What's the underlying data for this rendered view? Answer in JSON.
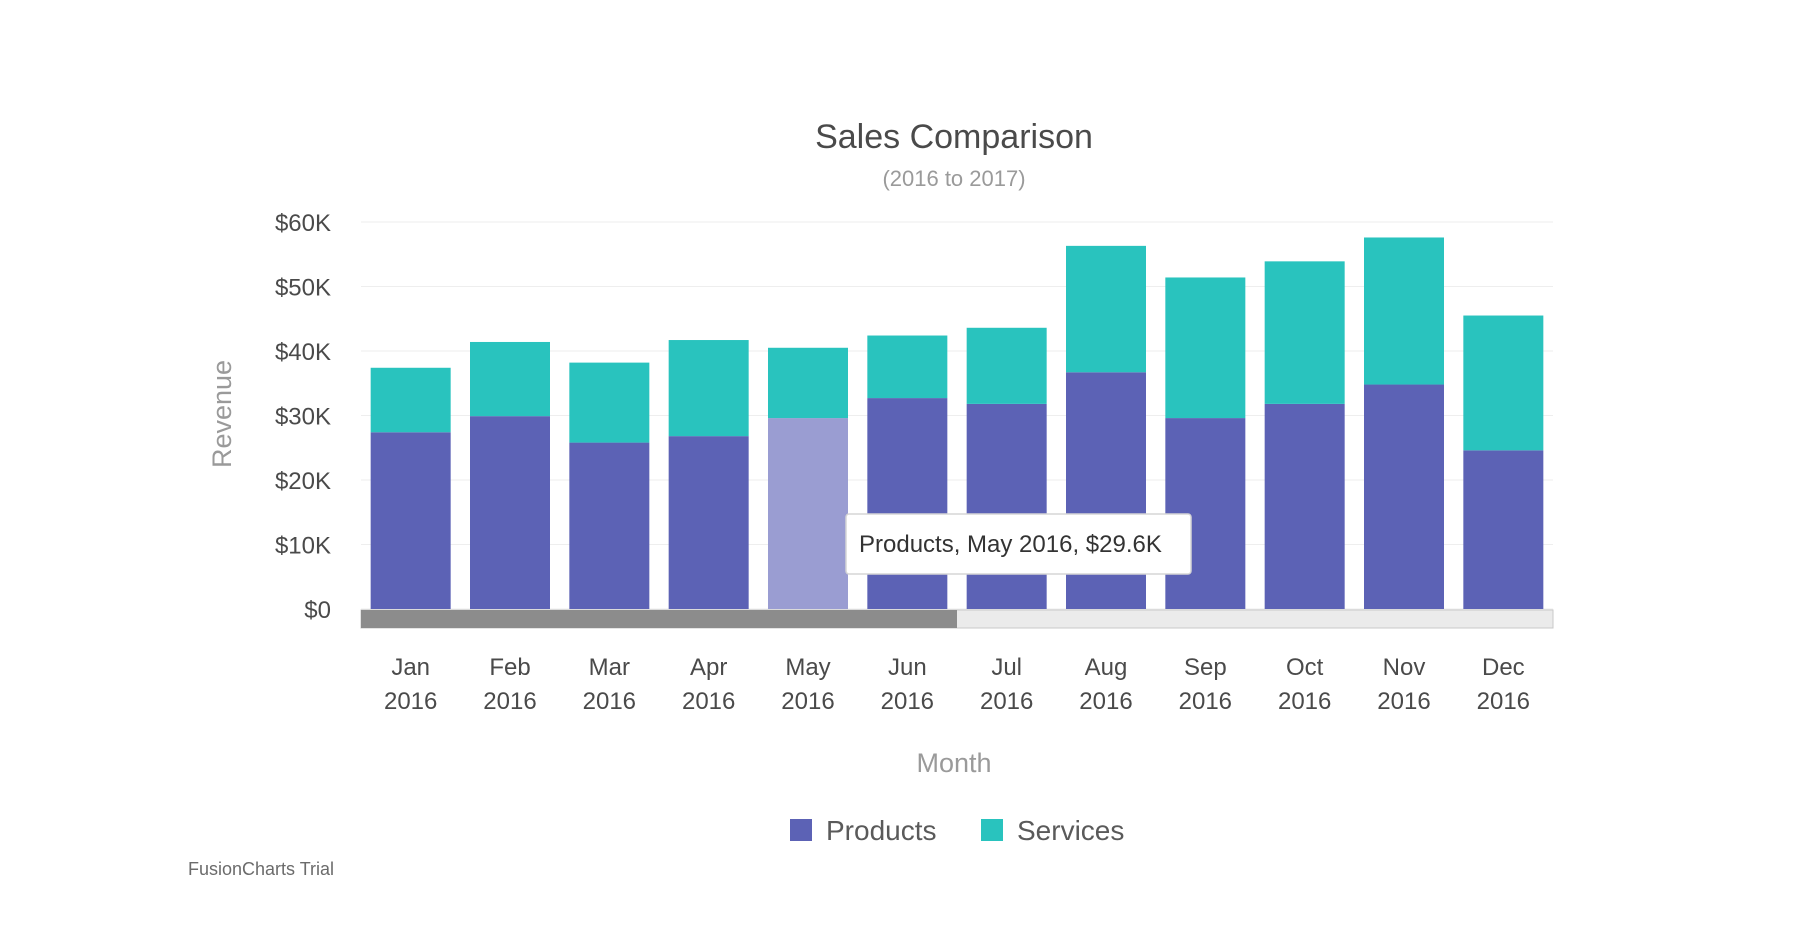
{
  "colors": {
    "products": "#5c62b5",
    "services": "#29c3be",
    "products_highlight": "#9a9dd2",
    "grid": "#eeeeee",
    "scroll_thumb": "#8c8c8c",
    "scroll_track": "#ebebeb"
  },
  "chart_data": {
    "type": "bar",
    "stacked": true,
    "title": "Sales Comparison",
    "subtitle": "(2016 to 2017)",
    "xlabel": "Month",
    "ylabel": "Revenue",
    "ylim": [
      0,
      60000
    ],
    "yticks": [
      "$0",
      "$10K",
      "$20K",
      "$30K",
      "$40K",
      "$50K",
      "$60K"
    ],
    "grid": true,
    "legend_position": "bottom",
    "categories": [
      [
        "Jan",
        "2016"
      ],
      [
        "Feb",
        "2016"
      ],
      [
        "Mar",
        "2016"
      ],
      [
        "Apr",
        "2016"
      ],
      [
        "May",
        "2016"
      ],
      [
        "Jun",
        "2016"
      ],
      [
        "Jul",
        "2016"
      ],
      [
        "Aug",
        "2016"
      ],
      [
        "Sep",
        "2016"
      ],
      [
        "Oct",
        "2016"
      ],
      [
        "Nov",
        "2016"
      ],
      [
        "Dec",
        "2016"
      ]
    ],
    "series": [
      {
        "name": "Products",
        "values": [
          27400,
          29900,
          25800,
          26800,
          29600,
          32700,
          31800,
          36700,
          29600,
          31800,
          34800,
          24600
        ]
      },
      {
        "name": "Services",
        "values": [
          10000,
          11500,
          12400,
          14900,
          10900,
          9700,
          11800,
          19600,
          21800,
          22100,
          22800,
          20900
        ]
      }
    ],
    "tooltip": {
      "text": "Products, May 2016, $29.6K",
      "category_index": 4,
      "series_index": 0
    },
    "scrollbar": {
      "visible_fraction": 0.5,
      "position": 0
    }
  },
  "watermark": "FusionCharts Trial"
}
